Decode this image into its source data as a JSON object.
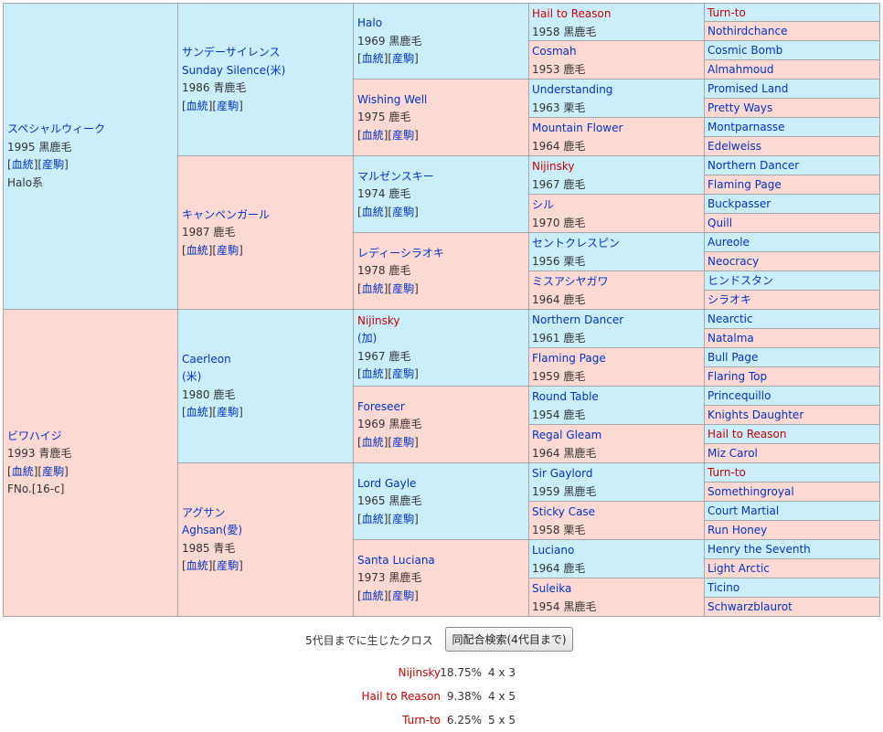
{
  "pedigree": {
    "gen1": [
      {
        "name": "スペシャルウィーク",
        "year_color": "1995 黒鹿毛",
        "line": "Halo系",
        "side": "sire"
      },
      {
        "name": "ビワハイジ",
        "year_color": "1993 青鹿毛",
        "line": "FNo.[16-c]",
        "side": "dam"
      }
    ],
    "gen2": [
      {
        "name": "サンデーサイレンス",
        "alt": "Sunday Silence(米)",
        "year_color": "1986 青鹿毛",
        "side": "sire"
      },
      {
        "name": "キャンペンガール",
        "year_color": "1987 鹿毛",
        "side": "dam"
      },
      {
        "name": "Caerleon",
        "alt": "(米)",
        "year_color": "1980 鹿毛",
        "side": "sire"
      },
      {
        "name": "アグサン",
        "alt": "Aghsan(愛)",
        "year_color": "1985 青毛",
        "side": "dam"
      }
    ],
    "gen3": [
      {
        "name": "Halo",
        "year_color": "1969 黒鹿毛",
        "side": "sire"
      },
      {
        "name": "Wishing Well",
        "year_color": "1975 鹿毛",
        "side": "dam"
      },
      {
        "name": "マルゼンスキー",
        "year_color": "1974 鹿毛",
        "side": "sire"
      },
      {
        "name": "レディーシラオキ",
        "year_color": "1978 鹿毛",
        "side": "dam"
      },
      {
        "name": "Nijinsky",
        "alt": "(加)",
        "year_color": "1967 鹿毛",
        "side": "sire",
        "cross": true
      },
      {
        "name": "Foreseer",
        "year_color": "1969 黒鹿毛",
        "side": "dam"
      },
      {
        "name": "Lord Gayle",
        "year_color": "1965 黒鹿毛",
        "side": "sire"
      },
      {
        "name": "Santa Luciana",
        "year_color": "1973 黒鹿毛",
        "side": "dam"
      }
    ],
    "gen4": [
      {
        "name": "Hail to Reason",
        "year_color": "1958 黒鹿毛",
        "side": "sire",
        "cross": true
      },
      {
        "name": "Cosmah",
        "year_color": "1953 鹿毛",
        "side": "dam"
      },
      {
        "name": "Understanding",
        "year_color": "1963 栗毛",
        "side": "sire"
      },
      {
        "name": "Mountain Flower",
        "year_color": "1964 鹿毛",
        "side": "dam"
      },
      {
        "name": "Nijinsky",
        "year_color": "1967 鹿毛",
        "side": "sire",
        "cross": true
      },
      {
        "name": "シル",
        "year_color": "1970 鹿毛",
        "side": "dam"
      },
      {
        "name": "セントクレスピン",
        "year_color": "1956 栗毛",
        "side": "sire"
      },
      {
        "name": "ミスアシヤガワ",
        "year_color": "1964 鹿毛",
        "side": "dam"
      },
      {
        "name": "Northern Dancer",
        "year_color": "1961 鹿毛",
        "side": "sire"
      },
      {
        "name": "Flaming Page",
        "year_color": "1959 鹿毛",
        "side": "dam"
      },
      {
        "name": "Round Table",
        "year_color": "1954 鹿毛",
        "side": "sire"
      },
      {
        "name": "Regal Gleam",
        "year_color": "1964 黒鹿毛",
        "side": "dam"
      },
      {
        "name": "Sir Gaylord",
        "year_color": "1959 黒鹿毛",
        "side": "sire"
      },
      {
        "name": "Sticky Case",
        "year_color": "1958 栗毛",
        "side": "dam"
      },
      {
        "name": "Luciano",
        "year_color": "1964 鹿毛",
        "side": "sire"
      },
      {
        "name": "Suleika",
        "year_color": "1954 黒鹿毛",
        "side": "dam"
      }
    ],
    "gen5": [
      {
        "name": "Turn-to",
        "side": "sire",
        "cross": true
      },
      {
        "name": "Nothirdchance",
        "side": "dam"
      },
      {
        "name": "Cosmic Bomb",
        "side": "sire"
      },
      {
        "name": "Almahmoud",
        "side": "dam"
      },
      {
        "name": "Promised Land",
        "side": "sire"
      },
      {
        "name": "Pretty Ways",
        "side": "dam"
      },
      {
        "name": "Montparnasse",
        "side": "sire"
      },
      {
        "name": "Edelweiss",
        "side": "dam"
      },
      {
        "name": "Northern Dancer",
        "side": "sire"
      },
      {
        "name": "Flaming Page",
        "side": "dam"
      },
      {
        "name": "Buckpasser",
        "side": "sire"
      },
      {
        "name": "Quill",
        "side": "dam"
      },
      {
        "name": "Aureole",
        "side": "sire"
      },
      {
        "name": "Neocracy",
        "side": "dam"
      },
      {
        "name": "ヒンドスタン",
        "side": "sire"
      },
      {
        "name": "シラオキ",
        "side": "dam"
      },
      {
        "name": "Nearctic",
        "side": "sire"
      },
      {
        "name": "Natalma",
        "side": "dam"
      },
      {
        "name": "Bull Page",
        "side": "sire"
      },
      {
        "name": "Flaring Top",
        "side": "dam"
      },
      {
        "name": "Princequillo",
        "side": "sire"
      },
      {
        "name": "Knights Daughter",
        "side": "dam"
      },
      {
        "name": "Hail to Reason",
        "side": "sire",
        "cross": true
      },
      {
        "name": "Miz Carol",
        "side": "dam"
      },
      {
        "name": "Turn-to",
        "side": "sire",
        "cross": true
      },
      {
        "name": "Somethingroyal",
        "side": "dam"
      },
      {
        "name": "Court Martial",
        "side": "sire"
      },
      {
        "name": "Run Honey",
        "side": "dam"
      },
      {
        "name": "Henry the Seventh",
        "side": "sire"
      },
      {
        "name": "Light Arctic",
        "side": "dam"
      },
      {
        "name": "Ticino",
        "side": "sire"
      },
      {
        "name": "Schwarzblaurot",
        "side": "dam"
      }
    ],
    "link_open": "[",
    "link_close": "]",
    "link_pedigree": "血統",
    "link_produce": "産駒"
  },
  "crosses": {
    "title": "5代目までに生じたクロス",
    "search_button": "同配合検索(4代目まで)",
    "rows": [
      {
        "name": "Nijinsky",
        "percent": "18.75%",
        "gens": "4 x 3"
      },
      {
        "name": "Hail to Reason",
        "percent": "9.38%",
        "gens": "4 x 5"
      },
      {
        "name": "Turn-to",
        "percent": "6.25%",
        "gens": "5 x 5"
      }
    ]
  },
  "colors": {
    "sire_bg": "#cbeefb",
    "dam_bg": "#fdd9d3",
    "link": "#0033cc",
    "cross": "#cc0000"
  }
}
